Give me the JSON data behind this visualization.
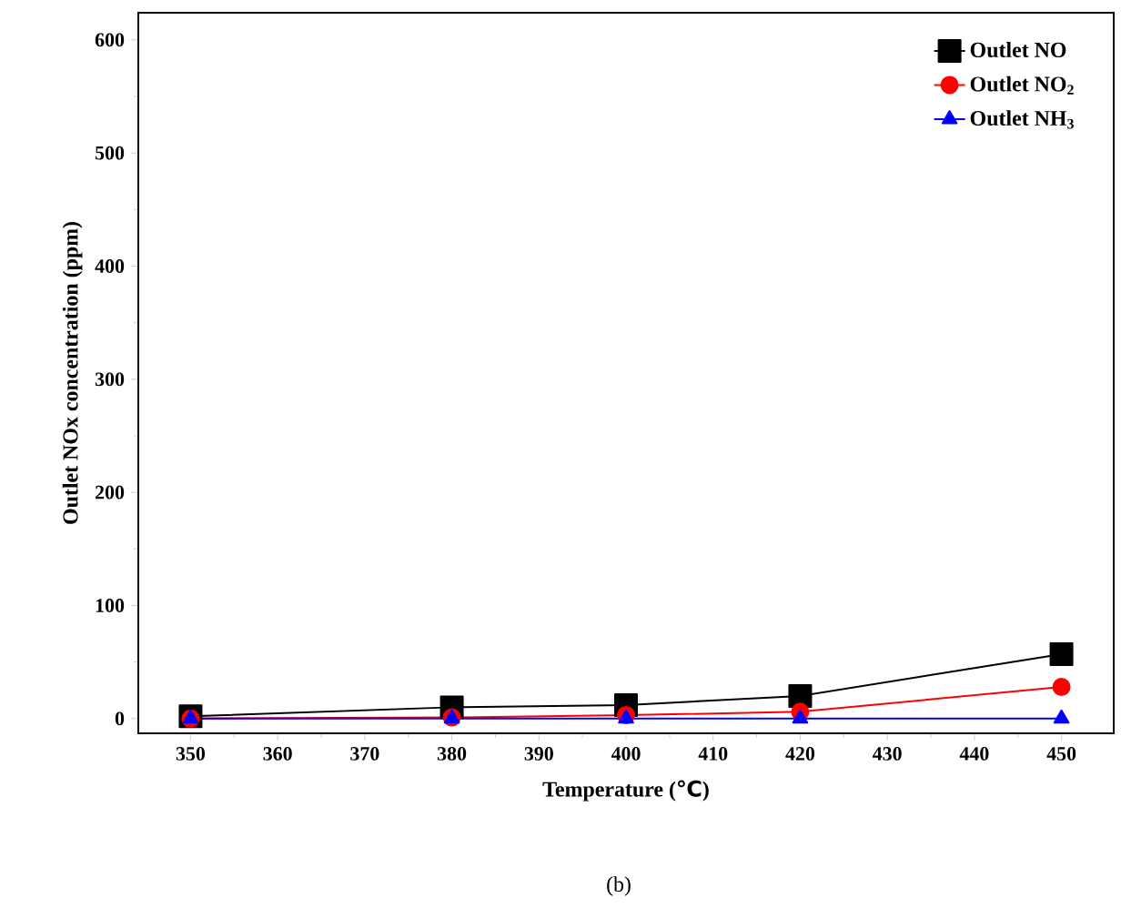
{
  "chart_data": {
    "type": "line",
    "xlabel": "Temperature (℃)",
    "ylabel": "Outlet NOx concentration (ppm)",
    "x": [
      350,
      380,
      400,
      420,
      450
    ],
    "series": [
      {
        "name": "Outlet NO",
        "color": "#000000",
        "marker": "square",
        "values": [
          2,
          10,
          12,
          20,
          57
        ]
      },
      {
        "name": "Outlet NO$_{2}$",
        "color": "#ff0000",
        "marker": "circle",
        "values": [
          0,
          1,
          3,
          6,
          28
        ]
      },
      {
        "name": "Outlet NH$_{3}$",
        "color": "#0000ff",
        "marker": "triangle",
        "values": [
          0,
          0,
          0,
          0,
          0
        ]
      }
    ],
    "xlim": [
      344,
      456
    ],
    "ylim": [
      -13,
      624
    ],
    "xticks": [
      350,
      360,
      370,
      380,
      390,
      400,
      410,
      420,
      430,
      440,
      450
    ],
    "yticks": [
      0,
      100,
      200,
      300,
      400,
      500,
      600
    ],
    "legend": "top right",
    "line_style": "solid",
    "annotations": [
      "(b)"
    ]
  }
}
